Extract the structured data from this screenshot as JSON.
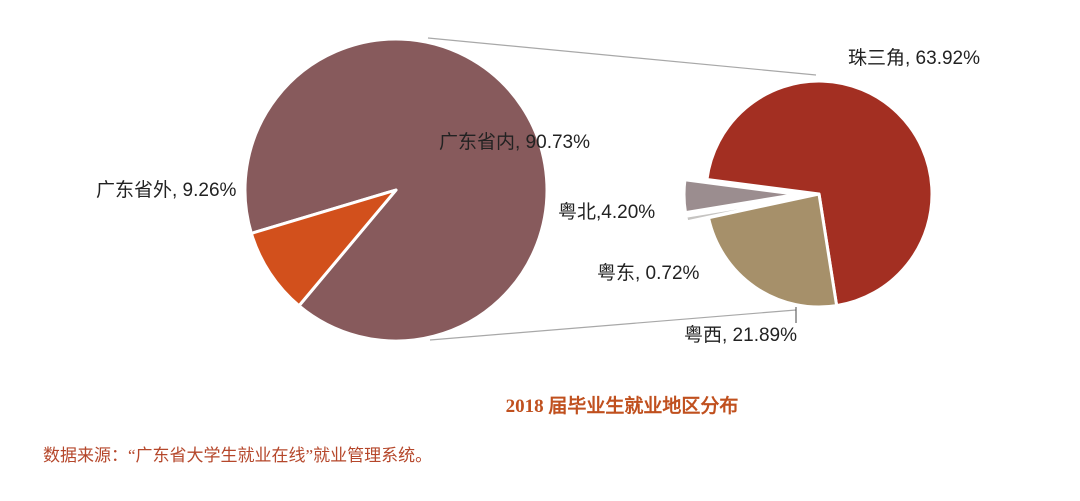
{
  "chart_data": [
    {
      "type": "pie",
      "slices": [
        {
          "label": "广东省内",
          "value": 90.73,
          "display": "广东省内, 90.73%",
          "color": "#875a5c"
        },
        {
          "label": "广东省外",
          "value": 9.26,
          "display": "广东省外, 9.26%",
          "color": "#d2501c"
        }
      ]
    },
    {
      "type": "pie",
      "slices": [
        {
          "label": "珠三角",
          "value": 63.92,
          "display": "珠三角, 63.92%",
          "color": "#a32f22"
        },
        {
          "label": "粤西",
          "value": 21.89,
          "display": "粤西, 21.89%",
          "color": "#a6906a"
        },
        {
          "label": "粤东",
          "value": 0.72,
          "display": "粤东, 0.72%",
          "color": "#c6c4c2"
        },
        {
          "label": "粤北",
          "value": 4.2,
          "display": "粤北,4.20%",
          "color": "#9b8d8f"
        }
      ]
    }
  ],
  "title": "2018 届毕业生就业地区分布",
  "source_note": "数据来源：“广东省大学生就业在线”就业管理系统。"
}
